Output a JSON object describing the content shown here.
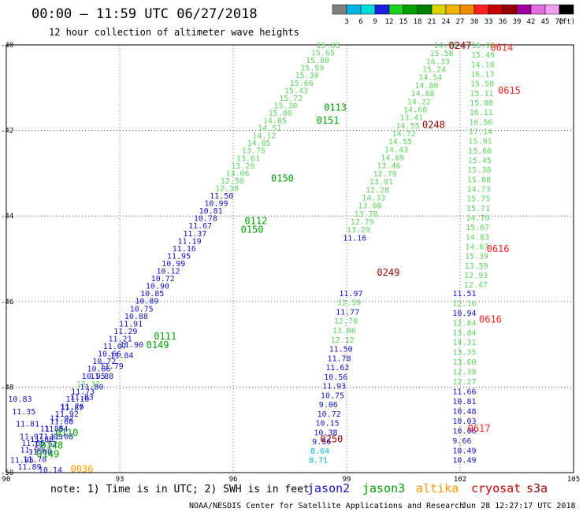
{
  "header": {
    "title": "00:00 – 11:59 UTC 06/27/2018",
    "subtitle": "12 hour collection of altimeter wave heights"
  },
  "color_scale": {
    "unit": "(ft)",
    "labels": [
      "3",
      "6",
      "9",
      "12",
      "15",
      "18",
      "21",
      "24",
      "27",
      "30",
      "33",
      "36",
      "39",
      "42",
      "45",
      "70"
    ],
    "colors": [
      "#7f7f7f",
      "#00b4e6",
      "#00dcdc",
      "#1e1ede",
      "#1fd11f",
      "#00a000",
      "#008000",
      "#d8d800",
      "#f0b400",
      "#f08c00",
      "#ff2020",
      "#c80000",
      "#960000",
      "#a000a0",
      "#e070e0",
      "#f0a0f0",
      "#000000"
    ]
  },
  "footer": {
    "note": "note: 1) Time is in UTC; 2) SWH is in feet",
    "credit": "NOAA/NESDIS Center for Satellite Applications and Research",
    "timestamp": "Jun 28 12:27:17 UTC 2018",
    "satellites": [
      {
        "name": "jason2",
        "color": "#1414c8"
      },
      {
        "name": "jason3",
        "color": "#00a000"
      },
      {
        "name": "altika",
        "color": "#ff9600"
      },
      {
        "name": "cryosat",
        "color": "#c80000"
      },
      {
        "name": "s3a",
        "color": "#960000"
      }
    ]
  },
  "chart_data": {
    "type": "scatter",
    "title": "00:00 – 11:59 UTC 06/27/2018",
    "subtitle": "12 hour collection of altimeter wave heights",
    "xlim": [
      90,
      105
    ],
    "ylim": [
      -50,
      -40
    ],
    "x_ticks": [
      "90",
      "93",
      "96",
      "99",
      "102",
      "105"
    ],
    "y_ticks": [
      "-40",
      "-42",
      "-44",
      "-46",
      "-48",
      "-50"
    ],
    "grid": true,
    "tracks": [
      {
        "x0": 90.3,
        "y0": -49.85,
        "x1": 98.2,
        "y1": -40.0,
        "points": [
          {
            "t": "11.89",
            "c": "#1414c8"
          },
          {
            "t": "11.78",
            "c": "#1414c8"
          },
          {
            "t": "11.00",
            "c": "#1414c8"
          },
          {
            "t": "11.52",
            "c": "#1414c8"
          },
          {
            "t": "11.09",
            "c": "#1414c8"
          },
          {
            "t": "11.84",
            "c": "#1414c8"
          },
          {
            "t": "11.68",
            "c": "#1414c8"
          },
          {
            "t": "11.92",
            "c": "#1414c8"
          },
          {
            "t": "11.76",
            "c": "#1414c8"
          },
          {
            "t": "11.10",
            "c": "#1414c8"
          },
          {
            "t": "11.73",
            "c": "#1414c8"
          },
          {
            "t": "12.32",
            "c": "#5fd35f"
          },
          {
            "t": "10.95",
            "c": "#1414c8"
          },
          {
            "t": "10.86",
            "c": "#1414c8"
          },
          {
            "t": "10.72",
            "c": "#1414c8"
          },
          {
            "t": "10.66",
            "c": "#1414c8"
          },
          {
            "t": "11.07",
            "c": "#1414c8"
          },
          {
            "t": "11.21",
            "c": "#1414c8"
          },
          {
            "t": "11.29",
            "c": "#1414c8"
          },
          {
            "t": "11.91",
            "c": "#1414c8"
          },
          {
            "t": "10.88",
            "c": "#1414c8"
          },
          {
            "t": "10.75",
            "c": "#1414c8"
          },
          {
            "t": "10.89",
            "c": "#1414c8"
          },
          {
            "t": "10.85",
            "c": "#1414c8"
          },
          {
            "t": "10.90",
            "c": "#1414c8"
          },
          {
            "t": "10.72",
            "c": "#1414c8"
          },
          {
            "t": "10.12",
            "c": "#1414c8"
          },
          {
            "t": "10.99",
            "c": "#1414c8"
          },
          {
            "t": "11.95",
            "c": "#1414c8"
          },
          {
            "t": "11.16",
            "c": "#1414c8"
          },
          {
            "t": "11.19",
            "c": "#1414c8"
          },
          {
            "t": "11.37",
            "c": "#1414c8"
          },
          {
            "t": "11.67",
            "c": "#1414c8"
          },
          {
            "t": "10.78",
            "c": "#1414c8"
          },
          {
            "t": "10.81",
            "c": "#1414c8"
          },
          {
            "t": "10.99",
            "c": "#1414c8"
          },
          {
            "t": "11.50",
            "c": "#1414c8"
          },
          {
            "t": "12.38",
            "c": "#5fd35f"
          },
          {
            "t": "12.50",
            "c": "#5fd35f"
          },
          {
            "t": "13.06",
            "c": "#5fd35f"
          },
          {
            "t": "13.29",
            "c": "#5fd35f"
          },
          {
            "t": "13.61",
            "c": "#5fd35f"
          },
          {
            "t": "13.75",
            "c": "#5fd35f"
          },
          {
            "t": "14.05",
            "c": "#5fd35f"
          },
          {
            "t": "14.12",
            "c": "#5fd35f"
          },
          {
            "t": "14.51",
            "c": "#5fd35f"
          },
          {
            "t": "14.85",
            "c": "#5fd35f"
          },
          {
            "t": "15.00",
            "c": "#5fd35f"
          },
          {
            "t": "15.30",
            "c": "#5fd35f"
          },
          {
            "t": "15.72",
            "c": "#5fd35f"
          },
          {
            "t": "15.43",
            "c": "#5fd35f"
          },
          {
            "t": "15.66",
            "c": "#5fd35f"
          },
          {
            "t": "15.30",
            "c": "#5fd35f"
          },
          {
            "t": "15.59",
            "c": "#5fd35f"
          },
          {
            "t": "15.80",
            "c": "#5fd35f"
          },
          {
            "t": "15.65",
            "c": "#5fd35f"
          },
          {
            "t": "15.83",
            "c": "#5fd35f"
          }
        ]
      },
      {
        "x0": 90.1,
        "y0": -49.7,
        "x1": 93.0,
        "y1": -47.0,
        "points": [
          {
            "t": "11.95",
            "c": "#1414c8"
          },
          {
            "t": "11.90",
            "c": "#1414c8"
          },
          {
            "t": "11.88",
            "c": "#1414c8"
          },
          {
            "t": "11.85",
            "c": "#1414c8"
          },
          {
            "t": "11.92",
            "c": "#1414c8"
          },
          {
            "t": "11.87",
            "c": "#1414c8"
          },
          {
            "t": "11.83",
            "c": "#1414c8"
          },
          {
            "t": "11.80",
            "c": "#1414c8"
          },
          {
            "t": "11.88",
            "c": "#1414c8"
          },
          {
            "t": "11.79",
            "c": "#1414c8"
          },
          {
            "t": "11.84",
            "c": "#1414c8"
          },
          {
            "t": "11.90",
            "c": "#1414c8"
          }
        ]
      },
      {
        "x0": 98.9,
        "y0": -44.5,
        "x1": 101.3,
        "y1": -40.0,
        "points": [
          {
            "t": "11.16",
            "c": "#1414c8"
          },
          {
            "t": "13.29",
            "c": "#5fd35f"
          },
          {
            "t": "12.79",
            "c": "#5fd35f"
          },
          {
            "t": "13.78",
            "c": "#5fd35f"
          },
          {
            "t": "13.08",
            "c": "#5fd35f"
          },
          {
            "t": "14.33",
            "c": "#5fd35f"
          },
          {
            "t": "12.28",
            "c": "#5fd35f"
          },
          {
            "t": "13.01",
            "c": "#5fd35f"
          },
          {
            "t": "12.79",
            "c": "#5fd35f"
          },
          {
            "t": "13.46",
            "c": "#5fd35f"
          },
          {
            "t": "14.09",
            "c": "#5fd35f"
          },
          {
            "t": "14.43",
            "c": "#5fd35f"
          },
          {
            "t": "14.55",
            "c": "#5fd35f"
          },
          {
            "t": "14.72",
            "c": "#5fd35f"
          },
          {
            "t": "14.55",
            "c": "#5fd35f"
          },
          {
            "t": "13.41",
            "c": "#5fd35f"
          },
          {
            "t": "14.60",
            "c": "#5fd35f"
          },
          {
            "t": "14.22",
            "c": "#5fd35f"
          },
          {
            "t": "14.88",
            "c": "#5fd35f"
          },
          {
            "t": "14.80",
            "c": "#5fd35f"
          },
          {
            "t": "14.54",
            "c": "#5fd35f"
          },
          {
            "t": "15.24",
            "c": "#5fd35f"
          },
          {
            "t": "16.33",
            "c": "#5fd35f"
          },
          {
            "t": "15.58",
            "c": "#5fd35f"
          },
          {
            "t": "14.71",
            "c": "#5fd35f"
          }
        ]
      },
      {
        "x0": 98.0,
        "y0": -49.7,
        "x1": 98.8,
        "y1": -45.8,
        "points": [
          {
            "t": "8.71",
            "c": "#00b4e6"
          },
          {
            "t": "8.64",
            "c": "#00b4e6"
          },
          {
            "t": "9.56",
            "c": "#1414c8"
          },
          {
            "t": "10.38",
            "c": "#1414c8"
          },
          {
            "t": "10.15",
            "c": "#1414c8"
          },
          {
            "t": "10.72",
            "c": "#1414c8"
          },
          {
            "t": "9.06",
            "c": "#1414c8"
          },
          {
            "t": "10.75",
            "c": "#1414c8"
          },
          {
            "t": "11.93",
            "c": "#1414c8"
          },
          {
            "t": "10.56",
            "c": "#1414c8"
          },
          {
            "t": "11.62",
            "c": "#1414c8"
          },
          {
            "t": "11.78",
            "c": "#1414c8"
          },
          {
            "t": "11.50",
            "c": "#1414c8"
          },
          {
            "t": "12.12",
            "c": "#5fd35f"
          },
          {
            "t": "13.06",
            "c": "#5fd35f"
          },
          {
            "t": "12.70",
            "c": "#5fd35f"
          },
          {
            "t": "11.77",
            "c": "#1414c8"
          },
          {
            "t": "12.59",
            "c": "#5fd35f"
          },
          {
            "t": "11.97",
            "c": "#1414c8"
          }
        ]
      },
      {
        "x0": 101.8,
        "y0": -49.7,
        "x1": 101.8,
        "y1": -45.8,
        "points": [
          {
            "t": "10.49",
            "c": "#1414c8"
          },
          {
            "t": "10.49",
            "c": "#1414c8"
          },
          {
            "t": "9.66",
            "c": "#1414c8"
          },
          {
            "t": "10.06",
            "c": "#1414c8"
          },
          {
            "t": "10.03",
            "c": "#1414c8"
          },
          {
            "t": "10.48",
            "c": "#1414c8"
          },
          {
            "t": "10.81",
            "c": "#1414c8"
          },
          {
            "t": "11.66",
            "c": "#1414c8"
          },
          {
            "t": "12.27",
            "c": "#5fd35f"
          },
          {
            "t": "12.39",
            "c": "#5fd35f"
          },
          {
            "t": "13.60",
            "c": "#5fd35f"
          },
          {
            "t": "13.35",
            "c": "#5fd35f"
          },
          {
            "t": "14.31",
            "c": "#5fd35f"
          },
          {
            "t": "13.84",
            "c": "#5fd35f"
          },
          {
            "t": "12.84",
            "c": "#5fd35f"
          },
          {
            "t": "10.94",
            "c": "#1414c8"
          },
          {
            "t": "12.16",
            "c": "#5fd35f"
          },
          {
            "t": "11.51",
            "c": "#1414c8"
          }
        ]
      },
      {
        "x0": 102.1,
        "y0": -45.6,
        "x1": 102.3,
        "y1": -40.0,
        "points": [
          {
            "t": "12.47",
            "c": "#5fd35f"
          },
          {
            "t": "12.93",
            "c": "#5fd35f"
          },
          {
            "t": "13.59",
            "c": "#5fd35f"
          },
          {
            "t": "15.39",
            "c": "#5fd35f"
          },
          {
            "t": "14.67",
            "c": "#5fd35f"
          },
          {
            "t": "14.83",
            "c": "#5fd35f"
          },
          {
            "t": "15.67",
            "c": "#5fd35f"
          },
          {
            "t": "14.70",
            "c": "#5fd35f"
          },
          {
            "t": "15.71",
            "c": "#5fd35f"
          },
          {
            "t": "15.75",
            "c": "#5fd35f"
          },
          {
            "t": "14.73",
            "c": "#5fd35f"
          },
          {
            "t": "15.08",
            "c": "#5fd35f"
          },
          {
            "t": "15.38",
            "c": "#5fd35f"
          },
          {
            "t": "15.45",
            "c": "#5fd35f"
          },
          {
            "t": "15.60",
            "c": "#5fd35f"
          },
          {
            "t": "15.91",
            "c": "#5fd35f"
          },
          {
            "t": "17.14",
            "c": "#5fd35f"
          },
          {
            "t": "16.56",
            "c": "#5fd35f"
          },
          {
            "t": "16.11",
            "c": "#5fd35f"
          },
          {
            "t": "15.08",
            "c": "#5fd35f"
          },
          {
            "t": "15.11",
            "c": "#5fd35f"
          },
          {
            "t": "15.50",
            "c": "#5fd35f"
          },
          {
            "t": "16.13",
            "c": "#5fd35f"
          },
          {
            "t": "14.18",
            "c": "#5fd35f"
          },
          {
            "t": "15.49",
            "c": "#5fd35f"
          },
          {
            "t": "15.96",
            "c": "#5fd35f"
          }
        ]
      }
    ],
    "singles": [
      {
        "x": 90.05,
        "y": -48.27,
        "t": "10.83",
        "c": "#1414c8"
      },
      {
        "x": 90.15,
        "y": -48.56,
        "t": "11.35",
        "c": "#1414c8"
      },
      {
        "x": 90.25,
        "y": -48.85,
        "t": "11.81",
        "c": "#1414c8"
      },
      {
        "x": 90.35,
        "y": -49.14,
        "t": "11.97",
        "c": "#1414c8"
      },
      {
        "x": 91.15,
        "y": -49.14,
        "t": "11.08",
        "c": "#1414c8"
      },
      {
        "x": 90.4,
        "y": -49.3,
        "t": "11.65",
        "c": "#1414c8"
      },
      {
        "x": 90.85,
        "y": -49.93,
        "t": "10.14",
        "c": "#1414c8"
      }
    ],
    "time_labels": [
      {
        "x": 91.7,
        "y": -49.9,
        "t": "0036",
        "c": "#ff9600"
      },
      {
        "x": 90.8,
        "y": -49.55,
        "t": "0149",
        "c": "#00a000"
      },
      {
        "x": 90.9,
        "y": -49.35,
        "t": "0148",
        "c": "#00a000"
      },
      {
        "x": 91.3,
        "y": -49.05,
        "t": "0110",
        "c": "#00a000"
      },
      {
        "x": 93.7,
        "y": -47.0,
        "t": "0149",
        "c": "#00a000"
      },
      {
        "x": 93.9,
        "y": -46.8,
        "t": "0111",
        "c": "#00a000"
      },
      {
        "x": 96.2,
        "y": -44.3,
        "t": "0150",
        "c": "#00a000"
      },
      {
        "x": 96.3,
        "y": -44.1,
        "t": "0112",
        "c": "#00a000"
      },
      {
        "x": 97.0,
        "y": -43.1,
        "t": "0150",
        "c": "#00a000"
      },
      {
        "x": 98.2,
        "y": -41.75,
        "t": "0151",
        "c": "#00a000"
      },
      {
        "x": 98.4,
        "y": -41.45,
        "t": "0113",
        "c": "#00a000"
      },
      {
        "x": 99.8,
        "y": -45.3,
        "t": "0249",
        "c": "#960000"
      },
      {
        "x": 98.3,
        "y": -49.2,
        "t": "0250",
        "c": "#960000"
      },
      {
        "x": 101.0,
        "y": -41.85,
        "t": "0248",
        "c": "#960000"
      },
      {
        "x": 101.7,
        "y": -40.0,
        "t": "0247",
        "c": "#960000"
      },
      {
        "x": 102.8,
        "y": -40.05,
        "t": "0614",
        "c": "#ff2020"
      },
      {
        "x": 103.0,
        "y": -41.05,
        "t": "0615",
        "c": "#ff2020"
      },
      {
        "x": 102.7,
        "y": -44.75,
        "t": "0616",
        "c": "#ff2020"
      },
      {
        "x": 102.5,
        "y": -46.4,
        "t": "0616",
        "c": "#ff2020"
      },
      {
        "x": 102.2,
        "y": -48.95,
        "t": "0617",
        "c": "#ff2020"
      }
    ]
  }
}
